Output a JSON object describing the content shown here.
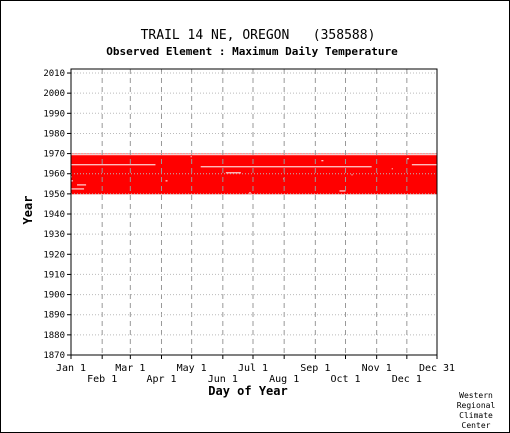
{
  "chart_data": {
    "type": "heatmap",
    "title": "TRAIL 14 NE, OREGON   (358588)",
    "subtitle": "Observed Element : Maximum Daily Temperature",
    "xlabel": "Day of Year",
    "ylabel": "Year",
    "credit": [
      "Western",
      "Regional",
      "Climate",
      "Center"
    ],
    "x_ticks": [
      {
        "label": "Jan 1",
        "day": 1
      },
      {
        "label": "Feb 1",
        "day": 32
      },
      {
        "label": "Mar 1",
        "day": 60
      },
      {
        "label": "Apr 1",
        "day": 91
      },
      {
        "label": "May 1",
        "day": 121
      },
      {
        "label": "Jun 1",
        "day": 152
      },
      {
        "label": "Jul 1",
        "day": 182
      },
      {
        "label": "Aug 1",
        "day": 213
      },
      {
        "label": "Sep 1",
        "day": 244
      },
      {
        "label": "Oct 1",
        "day": 274
      },
      {
        "label": "Nov 1",
        "day": 305
      },
      {
        "label": "Dec 1",
        "day": 335
      },
      {
        "label": "Dec 31",
        "day": 365
      }
    ],
    "xlim": [
      1,
      365
    ],
    "y_ticks": [
      1870,
      1880,
      1890,
      1900,
      1910,
      1920,
      1930,
      1940,
      1950,
      1960,
      1970,
      1980,
      1990,
      2000,
      2010
    ],
    "ylim": [
      1870,
      2012
    ],
    "grid": true,
    "series": [
      {
        "name": "",
        "color": "#ff0000",
        "years_with_data": [
          1950,
          1951,
          1952,
          1953,
          1954,
          1955,
          1956,
          1957,
          1958,
          1959,
          1960,
          1961,
          1962,
          1963,
          1964,
          1965,
          1966,
          1967,
          1968,
          1969
        ]
      }
    ],
    "gaps": [
      {
        "year": 1952,
        "start_day": 1,
        "end_day": 14
      },
      {
        "year": 1954,
        "start_day": 7,
        "end_day": 16
      },
      {
        "year": 1956,
        "start_day": 1,
        "end_day": 3
      },
      {
        "year": 1958,
        "start_day": 1,
        "end_day": 2
      },
      {
        "year": 1960,
        "start_day": 155,
        "end_day": 170
      },
      {
        "year": 1963,
        "start_day": 130,
        "end_day": 300
      },
      {
        "year": 1964,
        "start_day": 1,
        "end_day": 85
      },
      {
        "year": 1964,
        "start_day": 340,
        "end_day": 365
      },
      {
        "year": 1969,
        "start_day": 1,
        "end_day": 365
      },
      {
        "year": 1951,
        "start_day": 268,
        "end_day": 274
      },
      {
        "year": 1956,
        "start_day": 95,
        "end_day": 97
      },
      {
        "year": 1957,
        "start_day": 212,
        "end_day": 213
      },
      {
        "year": 1959,
        "start_day": 280,
        "end_day": 281
      },
      {
        "year": 1962,
        "start_day": 320,
        "end_day": 321
      },
      {
        "year": 1966,
        "start_day": 250,
        "end_day": 252
      },
      {
        "year": 1967,
        "start_day": 335,
        "end_day": 337
      },
      {
        "year": 1968,
        "start_day": 120,
        "end_day": 121
      },
      {
        "year": 1950,
        "start_day": 178,
        "end_day": 180
      }
    ]
  }
}
